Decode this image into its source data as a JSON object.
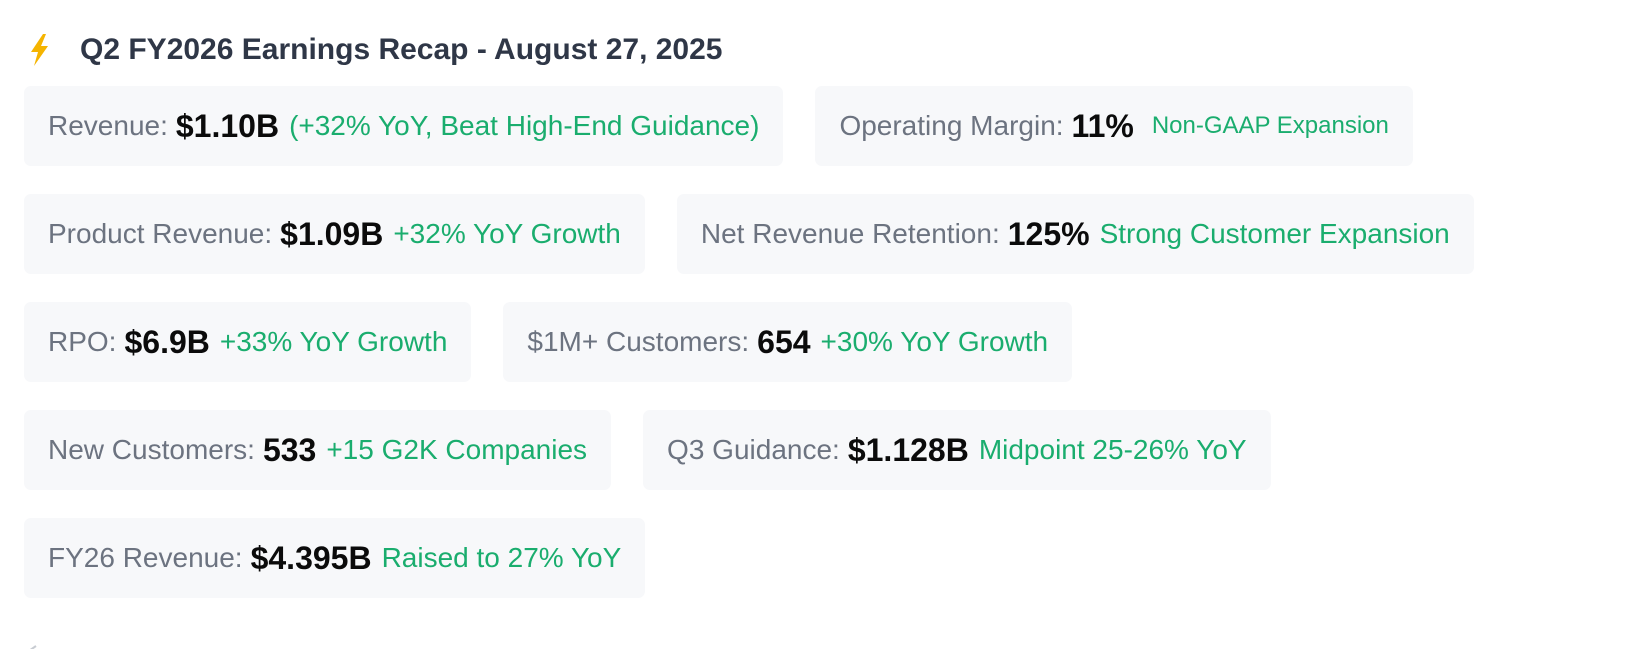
{
  "header": {
    "icon": "lightning-bolt-icon",
    "title": "Q2 FY2026 Earnings Recap - August 27, 2025"
  },
  "colors": {
    "accent_green": "#1aad6e",
    "card_bg": "#f7f8fa",
    "label_gray": "#6c7380",
    "title_dark": "#2f3747",
    "bolt_yellow": "#f5b400"
  },
  "metrics": [
    {
      "label": "Revenue:",
      "value": "$1.10B",
      "note": "(+32% YoY, Beat High-End Guidance)"
    },
    {
      "label": "Operating Margin:",
      "value": "11%",
      "note": "Non-GAAP Expansion"
    },
    {
      "label": "Product Revenue:",
      "value": "$1.09B",
      "note": "+32% YoY Growth"
    },
    {
      "label": "Net Revenue Retention:",
      "value": "125%",
      "note": "Strong Customer Expansion"
    },
    {
      "label": "RPO:",
      "value": "$6.9B",
      "note": "+33% YoY Growth"
    },
    {
      "label": "$1M+ Customers:",
      "value": "654",
      "note": "+30% YoY Growth"
    },
    {
      "label": "New Customers:",
      "value": "533",
      "note": "+15 G2K Companies"
    },
    {
      "label": "Q3 Guidance:",
      "value": "$1.128B",
      "note": "Midpoint 25-26% YoY"
    },
    {
      "label": "FY26 Revenue:",
      "value": "$4.395B",
      "note": "Raised to 27% YoY"
    }
  ]
}
